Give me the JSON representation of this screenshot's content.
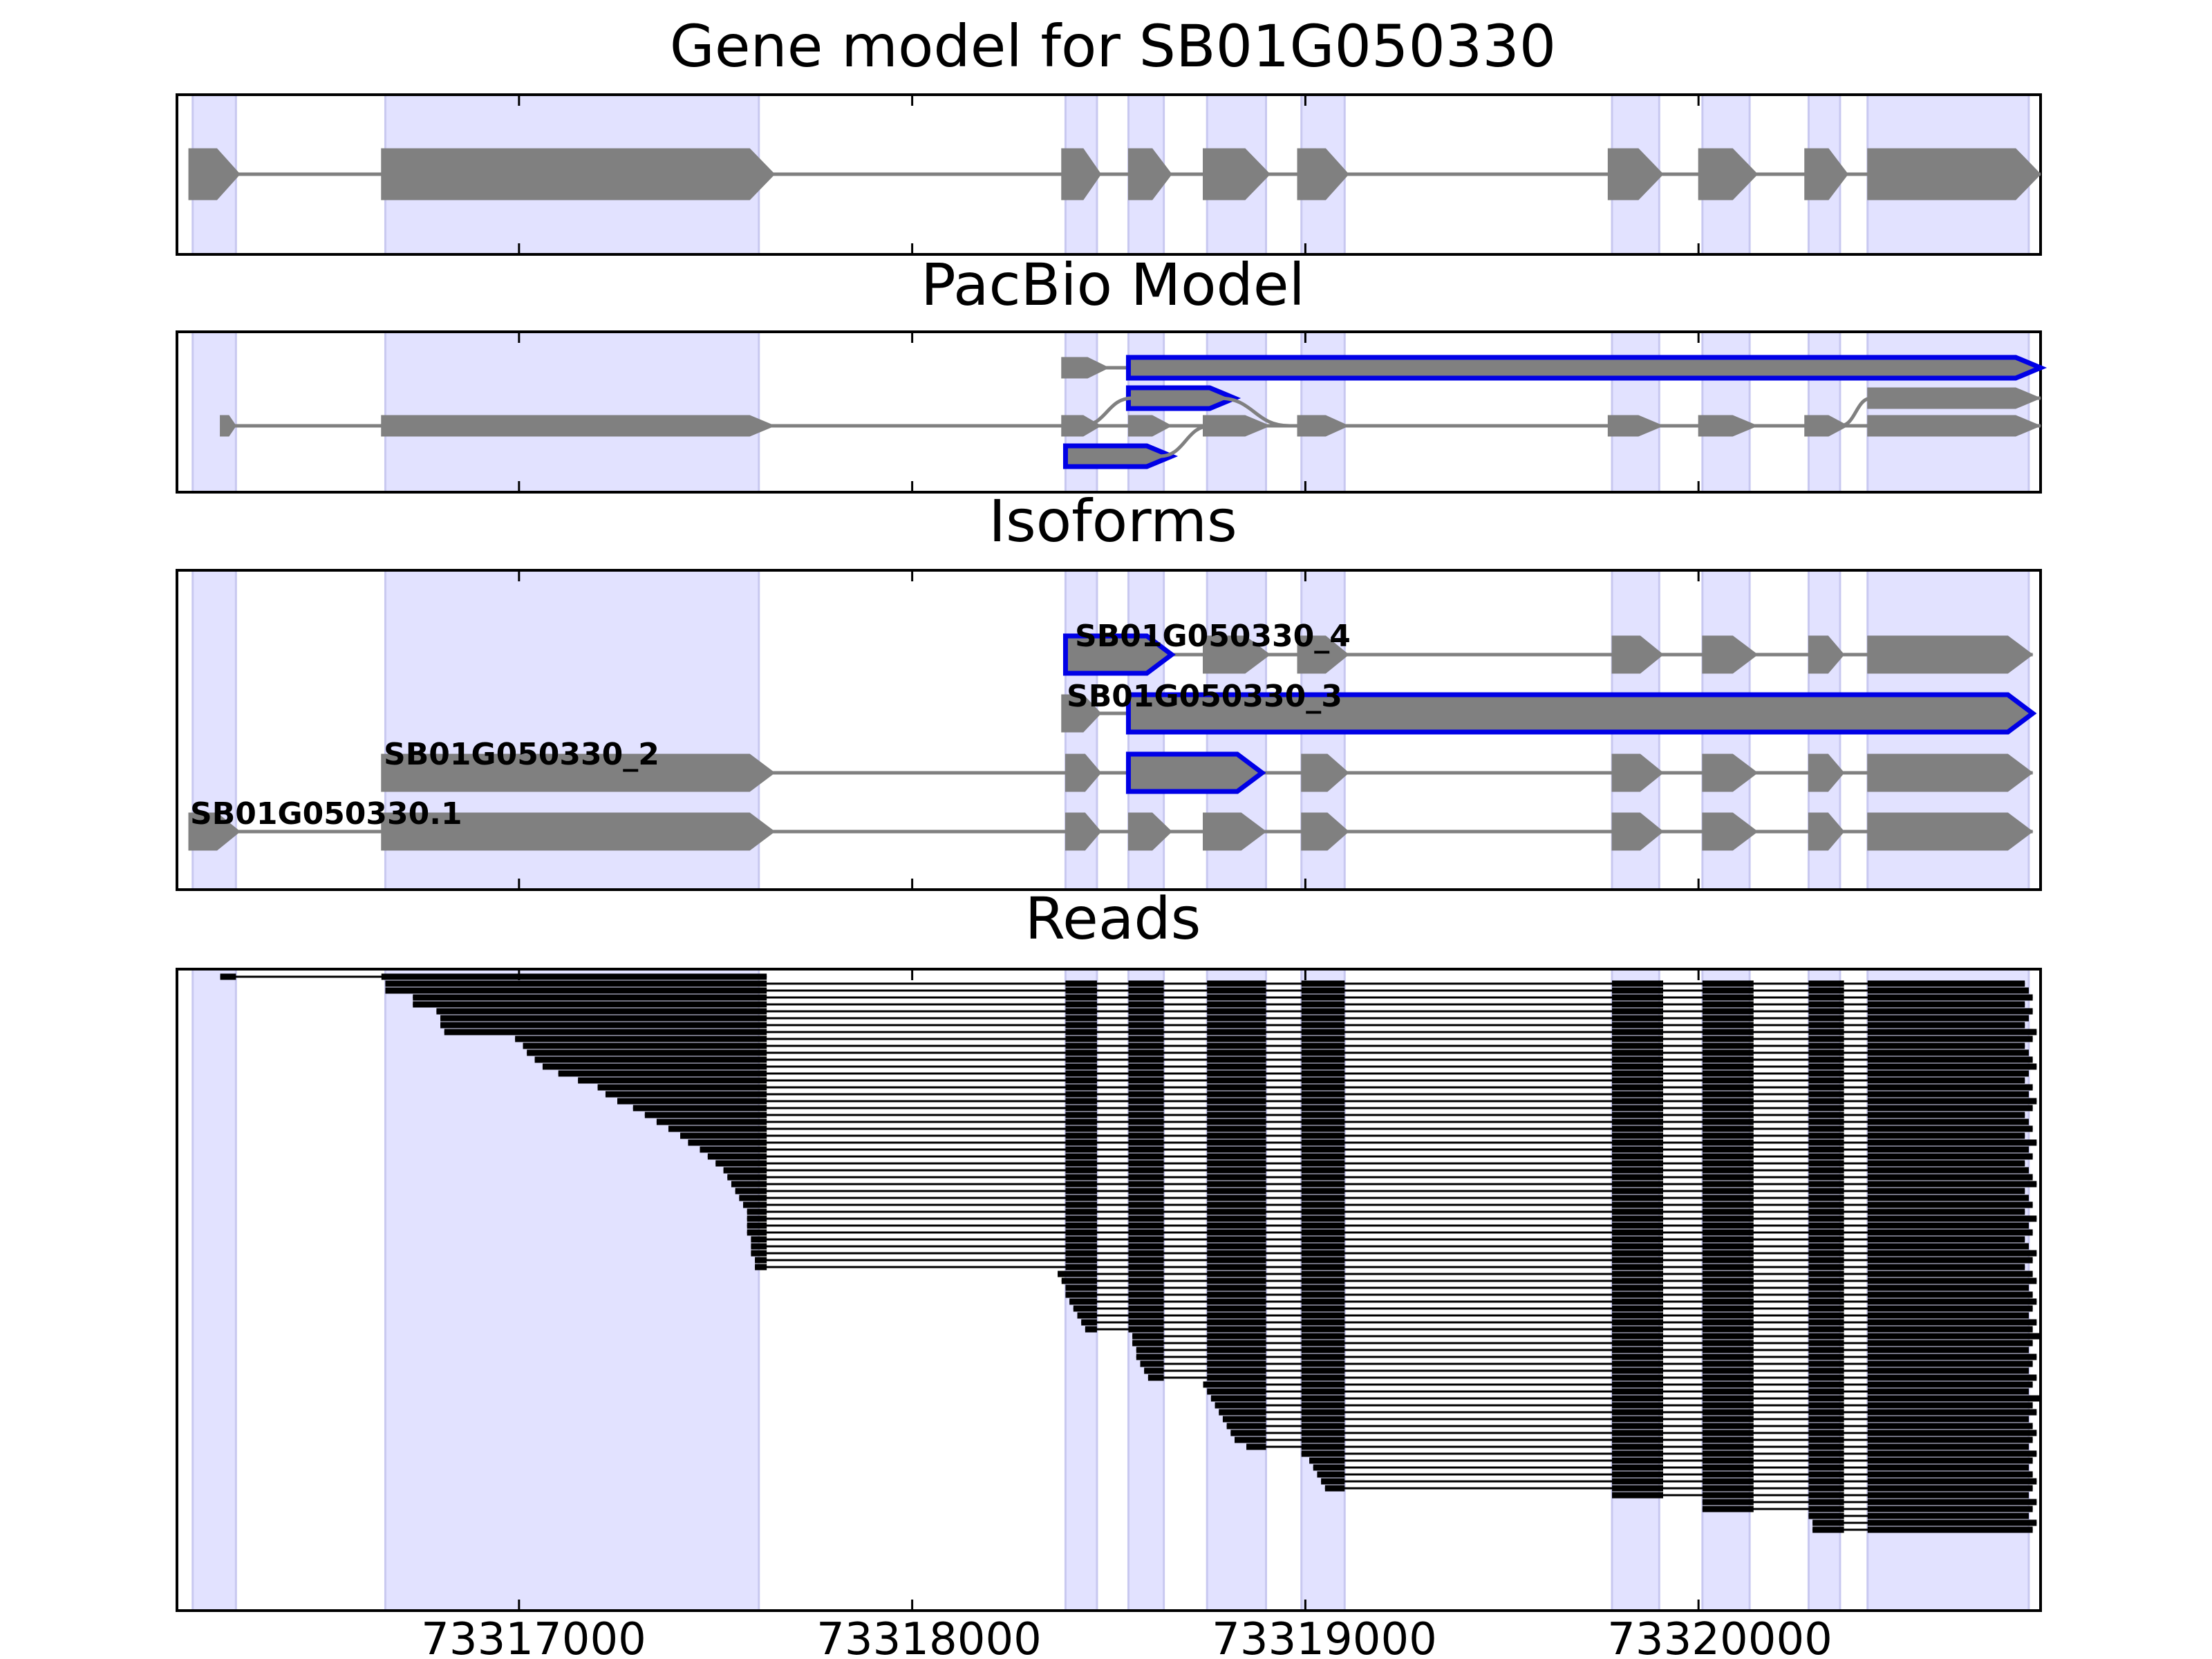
{
  "genomic_axis": {
    "start": 73316130,
    "end": 73320870,
    "ticks": [
      73317000,
      73318000,
      73319000,
      73320000
    ],
    "tick_labels": [
      "73317000",
      "73318000",
      "73319000",
      "73320000"
    ]
  },
  "exon_regions": [
    [
      73316170,
      73316280
    ],
    [
      73316660,
      73317610
    ],
    [
      73318390,
      73318470
    ],
    [
      73318550,
      73318640
    ],
    [
      73318750,
      73318900
    ],
    [
      73318990,
      73319100
    ],
    [
      73319780,
      73319900
    ],
    [
      73320010,
      73320130
    ],
    [
      73320280,
      73320360
    ],
    [
      73320430,
      73320840
    ]
  ],
  "colors": {
    "region": "#e2e2ff",
    "exon": "#808080",
    "intron": "#808080",
    "highlight": "#0000e6",
    "read": "#000000",
    "frame": "#000000"
  },
  "panels": [
    {
      "key": "gene_model",
      "title": "Gene model for SB01G050330",
      "tracks": [
        {
          "exons": [
            [
              73316160,
              73316290
            ],
            [
              73316650,
              73317650
            ],
            [
              73318380,
              73318480
            ],
            [
              73318550,
              73318660
            ],
            [
              73318740,
              73318910
            ],
            [
              73318980,
              73319110
            ],
            [
              73319770,
              73319910
            ],
            [
              73320000,
              73320150
            ],
            [
              73320270,
              73320380
            ],
            [
              73320430,
              73320870
            ]
          ]
        }
      ]
    },
    {
      "key": "pacbio_model",
      "title": "PacBio Model",
      "tracks": [
        {
          "exons": [
            [
              73318380,
              73318500
            ],
            [
              73318550,
              73320870
            ]
          ],
          "highlight": [
            1
          ]
        },
        {
          "exons": [
            [
              73318550,
              73318820
            ]
          ],
          "highlight": [
            0
          ],
          "connect_to_next": [
            [
              0,
              73318780,
              73318960
            ]
          ]
        },
        {
          "exons": [
            [
              73316240,
              73316280
            ],
            [
              73316650,
              73317650
            ],
            [
              73318380,
              73318480
            ],
            [
              73318550,
              73318660
            ],
            [
              73318740,
              73318910
            ],
            [
              73318980,
              73319110
            ],
            [
              73319770,
              73319910
            ],
            [
              73320000,
              73320150
            ],
            [
              73320270,
              73320380
            ],
            [
              73320430,
              73320870
            ]
          ],
          "connect_to_prev": [
            [
              2,
              73318420,
              73318560
            ],
            [
              8,
              73320360,
              73320440
            ]
          ]
        },
        {
          "exons": [
            [
              73318390,
              73318660
            ]
          ],
          "highlight": [
            0
          ],
          "connect_to_prev": [
            [
              0,
              73318630,
              73318760
            ]
          ]
        }
      ],
      "extra_prev_tracks": [
        {
          "row": 1,
          "exons": [
            [
              73320430,
              73320870
            ]
          ]
        }
      ]
    },
    {
      "key": "isoforms",
      "title": "Isoforms",
      "tracks": [
        {
          "name": "SB01G050330_4",
          "exons": [
            [
              73318390,
              73318660
            ],
            [
              73318740,
              73318910
            ],
            [
              73318980,
              73319110
            ],
            [
              73319780,
              73319910
            ],
            [
              73320010,
              73320150
            ],
            [
              73320280,
              73320370
            ],
            [
              73320430,
              73320850
            ]
          ],
          "highlight": [
            0
          ]
        },
        {
          "name": "SB01G050330_3",
          "exons": [
            [
              73318380,
              73318480
            ],
            [
              73318550,
              73320850
            ]
          ],
          "highlight": [
            1
          ]
        },
        {
          "name": "SB01G050330_2",
          "exons": [
            [
              73316650,
              73317650
            ],
            [
              73318390,
              73318480
            ],
            [
              73318550,
              73318890
            ],
            [
              73318990,
              73319110
            ],
            [
              73319780,
              73319910
            ],
            [
              73320010,
              73320150
            ],
            [
              73320280,
              73320370
            ],
            [
              73320430,
              73320850
            ]
          ],
          "highlight": [
            2
          ]
        },
        {
          "name": "SB01G050330.1",
          "exons": [
            [
              73316160,
              73316290
            ],
            [
              73316650,
              73317650
            ],
            [
              73318390,
              73318480
            ],
            [
              73318550,
              73318660
            ],
            [
              73318740,
              73318900
            ],
            [
              73318990,
              73319110
            ],
            [
              73319780,
              73319910
            ],
            [
              73320010,
              73320150
            ],
            [
              73320280,
              73320370
            ],
            [
              73320430,
              73320850
            ]
          ]
        }
      ]
    },
    {
      "key": "reads",
      "title": "Reads",
      "read_groups": {
        "full_exons": [
          [
            73318390,
            73318470
          ],
          [
            73318550,
            73318640
          ],
          [
            73318750,
            73318900
          ],
          [
            73318990,
            73319100
          ],
          [
            73319780,
            73319910
          ],
          [
            73320010,
            73320140
          ],
          [
            73320280,
            73320370
          ],
          [
            73320430
          ]
        ],
        "g1_first_exon_end": 73317630,
        "g1_starts": [
          73316660,
          73316660,
          73316730,
          73316730,
          73316790,
          73316800,
          73316800,
          73316810,
          73316990,
          73317010,
          73317020,
          73317040,
          73317060,
          73317100,
          73317150,
          73317200,
          73317220,
          73317250,
          73317290,
          73317320,
          73317350,
          73317380,
          73317410,
          73317430,
          73317460,
          73317480,
          73317500,
          73317520,
          73317530,
          73317540,
          73317550,
          73317560,
          73317570,
          73317580,
          73317580,
          73317580,
          73317580,
          73317590,
          73317590,
          73317590,
          73317600,
          73317600
        ],
        "g1_ends": [
          73320830,
          73320840,
          73320850,
          73320830,
          73320850,
          73320840,
          73320830,
          73320860,
          73320850,
          73320830,
          73320840,
          73320850,
          73320860,
          73320840,
          73320830,
          73320850,
          73320840,
          73320860,
          73320850,
          73320830,
          73320840,
          73320850,
          73320830,
          73320860,
          73320840,
          73320850,
          73320830,
          73320840,
          73320850,
          73320860,
          73320830,
          73320840,
          73320850,
          73320830,
          73320860,
          73320840,
          73320850,
          73320830,
          73320840,
          73320860,
          73320850,
          73320830
        ],
        "g2_starts": [
          73318370,
          73318380,
          73318390,
          73318390,
          73318400,
          73318410,
          73318420,
          73318430,
          73318440
        ],
        "g3_starts": [
          73318560,
          73318560,
          73318570,
          73318570,
          73318580,
          73318590,
          73318600
        ],
        "g4_starts": [
          73318740,
          73318750,
          73318760,
          73318770,
          73318780,
          73318790,
          73318800,
          73318810,
          73318820,
          73318850
        ],
        "g5_starts": [
          73318990,
          73319010,
          73319020,
          73319030,
          73319040,
          73319050
        ],
        "g6_starts": [
          73319780
        ],
        "g7_starts": [
          73320010,
          73320010
        ],
        "g8_starts": [
          73320280,
          73320290,
          73320290
        ],
        "late_ends": [
          73320850,
          73320860,
          73320840,
          73320850,
          73320860,
          73320850,
          73320840,
          73320860,
          73320850,
          73320870,
          73320850,
          73320840,
          73320860,
          73320850,
          73320840,
          73320860,
          73320850,
          73320840,
          73320870,
          73320850,
          73320860,
          73320840,
          73320850,
          73320860,
          73320850,
          73320840,
          73320860,
          73320850,
          73320840,
          73320850,
          73320860,
          73320850,
          73320840,
          73320860,
          73320850,
          73320840,
          73320860,
          73320850
        ],
        "first_read": {
          "exons": [
            [
              73316240,
              73316280
            ],
            [
              73316650,
              73317630
            ]
          ]
        }
      }
    }
  ]
}
